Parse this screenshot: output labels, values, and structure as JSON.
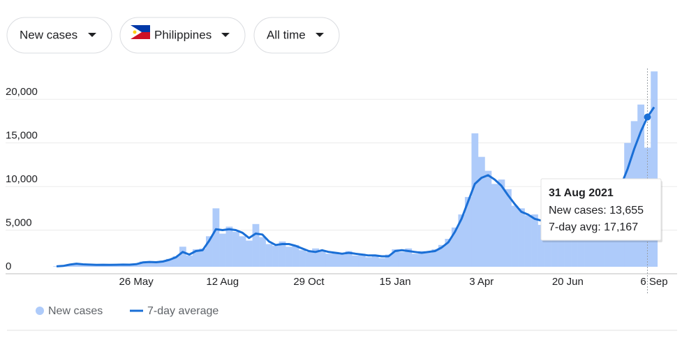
{
  "controls": {
    "metric": "New cases",
    "location": "Philippines",
    "range": "All time"
  },
  "chart_data": {
    "type": "bar-line",
    "categories": [
      null,
      null,
      null,
      null,
      null,
      null,
      null,
      null,
      null,
      null,
      null,
      null,
      "26 May",
      null,
      null,
      null,
      null,
      null,
      null,
      null,
      null,
      null,
      null,
      null,
      null,
      "12 Aug",
      null,
      null,
      null,
      null,
      null,
      null,
      null,
      null,
      null,
      null,
      null,
      null,
      "29 Oct",
      null,
      null,
      null,
      null,
      null,
      null,
      null,
      null,
      null,
      null,
      null,
      null,
      "15 Jan",
      null,
      null,
      null,
      null,
      null,
      null,
      null,
      null,
      null,
      null,
      null,
      null,
      "3 Apr",
      null,
      null,
      null,
      null,
      null,
      null,
      null,
      null,
      null,
      null,
      null,
      null,
      "20 Jun",
      null,
      null,
      null,
      null,
      null,
      null,
      null,
      null,
      null,
      null,
      null,
      null,
      "6 Sep"
    ],
    "series": [
      {
        "name": "New cases",
        "color": "#aecbfa",
        "values": [
          60,
          150,
          300,
          400,
          200,
          280,
          200,
          260,
          180,
          250,
          300,
          200,
          350,
          600,
          450,
          500,
          700,
          900,
          1200,
          2300,
          1300,
          2000,
          2100,
          3500,
          6700,
          3800,
          4600,
          4000,
          3500,
          3000,
          4900,
          3400,
          2600,
          2400,
          2900,
          2300,
          2500,
          1900,
          1700,
          2100,
          1800,
          1500,
          1700,
          1400,
          1800,
          1300,
          1500,
          1100,
          1200,
          1000,
          1400,
          2000,
          1700,
          2100,
          1500,
          1800,
          1600,
          2000,
          2500,
          3200,
          4500,
          6000,
          8000,
          15300,
          12600,
          11000,
          9500,
          10000,
          8900,
          7000,
          6700,
          5900,
          6000,
          4800,
          6200,
          5500,
          7000,
          5400,
          6000,
          5300,
          6100,
          5000,
          6300,
          7000,
          8500,
          10000,
          14200,
          16700,
          18600,
          13655,
          22400
        ]
      },
      {
        "name": "7-day average",
        "color": "#1a6fd6",
        "values": [
          50,
          100,
          250,
          350,
          280,
          250,
          220,
          230,
          220,
          230,
          250,
          240,
          300,
          500,
          550,
          520,
          600,
          800,
          1100,
          1700,
          1400,
          1800,
          1900,
          3000,
          4300,
          4200,
          4300,
          4200,
          3900,
          3300,
          3800,
          3700,
          2900,
          2500,
          2600,
          2600,
          2400,
          2100,
          1800,
          1700,
          1900,
          1700,
          1600,
          1500,
          1600,
          1500,
          1400,
          1300,
          1300,
          1200,
          1200,
          1800,
          1900,
          1800,
          1700,
          1600,
          1700,
          1800,
          2200,
          2800,
          4000,
          5500,
          7500,
          9500,
          10200,
          10500,
          10000,
          9300,
          8200,
          7200,
          6300,
          6000,
          5500,
          5300,
          5600,
          5900,
          6300,
          5900,
          5700,
          5600,
          5600,
          5500,
          5600,
          6300,
          7500,
          9300,
          11200,
          13500,
          15500,
          17167,
          18300
        ]
      }
    ],
    "ylim": [
      0,
      22500
    ],
    "yticks": [
      0,
      {
        "value": 5000,
        "label": "5,000"
      },
      {
        "value": 10000,
        "label": "10,000"
      },
      {
        "value": 15000,
        "label": "15,000"
      },
      {
        "value": 20000,
        "label": "20,000"
      }
    ],
    "grid": true,
    "tooltip": {
      "title": "31 Aug 2021",
      "lines": [
        "New cases: 13,655",
        "7-day avg: 17,167"
      ]
    }
  }
}
